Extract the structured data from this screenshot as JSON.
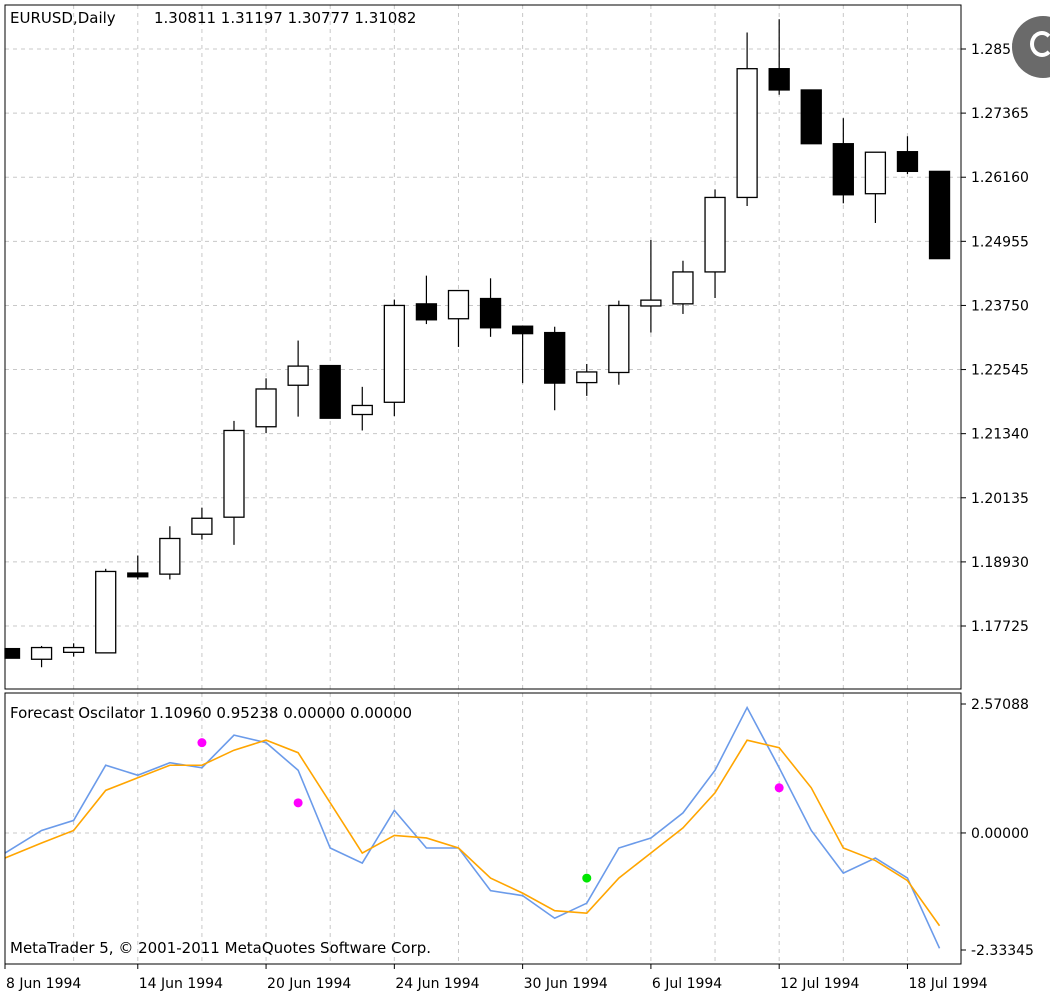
{
  "main_header": {
    "symbol_label": "EURUSD,Daily",
    "ohlc_values": "1.30811 1.31197 1.30777 1.31082"
  },
  "sub_header": {
    "indicator_label": "Forecast Oscilator 1.10960 0.95238 0.00000 0.00000",
    "copyright": "MetaTrader 5, © 2001-2011 MetaQuotes Software Corp."
  },
  "colors": {
    "grid": "#c8c8c8",
    "bull_fill": "#ffffff",
    "bear_fill": "#000000",
    "oscillator_line": "#6b9bea",
    "signal_line": "#ffa500",
    "buy_dot": "#00e600",
    "sell_dot": "#ff00ff",
    "corner_widget": "#6a6a6a"
  },
  "chart_data": [
    {
      "type": "candlestick",
      "title": "EURUSD,Daily",
      "ylim": [
        1.1665,
        1.2977
      ],
      "yticks": [
        "1.28570",
        "1.27365",
        "1.26160",
        "1.24955",
        "1.23750",
        "1.22545",
        "1.21340",
        "1.20135",
        "1.18930",
        "1.17725"
      ],
      "grid": true,
      "candles": [
        {
          "o": 1.173,
          "h": 1.173,
          "l": 1.1712,
          "c": 1.1712
        },
        {
          "o": 1.171,
          "h": 1.1735,
          "l": 1.1695,
          "c": 1.1732
        },
        {
          "o": 1.1723,
          "h": 1.174,
          "l": 1.1715,
          "c": 1.1732
        },
        {
          "o": 1.1722,
          "h": 1.188,
          "l": 1.1722,
          "c": 1.1875
        },
        {
          "o": 1.1872,
          "h": 1.1905,
          "l": 1.186,
          "c": 1.1865
        },
        {
          "o": 1.187,
          "h": 1.196,
          "l": 1.186,
          "c": 1.1937
        },
        {
          "o": 1.1945,
          "h": 1.1995,
          "l": 1.1935,
          "c": 1.1975
        },
        {
          "o": 1.1977,
          "h": 1.2158,
          "l": 1.1925,
          "c": 1.214
        },
        {
          "o": 1.2147,
          "h": 1.2238,
          "l": 1.2135,
          "c": 1.2218
        },
        {
          "o": 1.2225,
          "h": 1.2309,
          "l": 1.2166,
          "c": 1.2261
        },
        {
          "o": 1.2262,
          "h": 1.2262,
          "l": 1.2163,
          "c": 1.2163
        },
        {
          "o": 1.217,
          "h": 1.2222,
          "l": 1.214,
          "c": 1.2187
        },
        {
          "o": 1.2193,
          "h": 1.2386,
          "l": 1.2167,
          "c": 1.2375
        },
        {
          "o": 1.2378,
          "h": 1.2431,
          "l": 1.234,
          "c": 1.2348
        },
        {
          "o": 1.235,
          "h": 1.2403,
          "l": 1.2297,
          "c": 1.2403
        },
        {
          "o": 1.2388,
          "h": 1.2426,
          "l": 1.2316,
          "c": 1.2333
        },
        {
          "o": 1.2336,
          "h": 1.2336,
          "l": 1.2229,
          "c": 1.2322
        },
        {
          "o": 1.2324,
          "h": 1.2335,
          "l": 1.2178,
          "c": 1.2229
        },
        {
          "o": 1.223,
          "h": 1.2265,
          "l": 1.2205,
          "c": 1.225
        },
        {
          "o": 1.2249,
          "h": 1.2384,
          "l": 1.2226,
          "c": 1.2375
        },
        {
          "o": 1.2374,
          "h": 1.2498,
          "l": 1.2324,
          "c": 1.2385
        },
        {
          "o": 1.2378,
          "h": 1.2459,
          "l": 1.2359,
          "c": 1.2438
        },
        {
          "o": 1.2438,
          "h": 1.2593,
          "l": 1.2389,
          "c": 1.2578
        },
        {
          "o": 1.2578,
          "h": 1.2888,
          "l": 1.2562,
          "c": 1.282
        },
        {
          "o": 1.282,
          "h": 1.2913,
          "l": 1.2771,
          "c": 1.278
        },
        {
          "o": 1.278,
          "h": 1.278,
          "l": 1.2679,
          "c": 1.2679
        },
        {
          "o": 1.2679,
          "h": 1.2727,
          "l": 1.2567,
          "c": 1.2583
        },
        {
          "o": 1.2585,
          "h": 1.2663,
          "l": 1.253,
          "c": 1.2663
        },
        {
          "o": 1.2664,
          "h": 1.2693,
          "l": 1.2622,
          "c": 1.2627
        },
        {
          "o": 1.2627,
          "h": 1.2627,
          "l": 1.2463,
          "c": 1.2463
        }
      ]
    },
    {
      "type": "line",
      "title": "Forecast Oscilator 1.10960 0.95238 0.00000 0.00000",
      "ylim": [
        -2.33345,
        2.57088
      ],
      "yticks": [
        "2.57088",
        "0.00000",
        "-2.33345"
      ],
      "grid": true,
      "series": [
        {
          "values": [
            -0.4,
            0.05,
            0.25,
            1.35,
            1.15,
            1.4,
            1.3,
            1.95,
            1.8,
            1.25,
            -0.3,
            -0.6,
            0.45,
            -0.3,
            -0.3,
            -1.15,
            -1.25,
            -1.7,
            -1.4,
            -0.3,
            -0.1,
            0.4,
            1.25,
            2.5,
            1.3,
            0.05,
            -0.8,
            -0.5,
            -0.9,
            -2.3
          ]
        },
        {
          "values": [
            -0.5,
            -0.2,
            0.05,
            0.85,
            1.1,
            1.35,
            1.35,
            1.65,
            1.85,
            1.6,
            0.6,
            -0.4,
            -0.05,
            -0.1,
            -0.3,
            -0.9,
            -1.2,
            -1.55,
            -1.6,
            -0.9,
            -0.4,
            0.1,
            0.8,
            1.85,
            1.7,
            0.9,
            -0.3,
            -0.55,
            -0.95,
            -1.85
          ]
        }
      ],
      "markers": [
        {
          "x_index": 6,
          "value": 1.8,
          "kind": "sell"
        },
        {
          "x_index": 9,
          "value": 0.6,
          "kind": "sell"
        },
        {
          "x_index": 18,
          "value": -0.9,
          "kind": "buy"
        },
        {
          "x_index": 24,
          "value": 0.9,
          "kind": "sell"
        }
      ],
      "x_labels": [
        {
          "x_index": 0,
          "label": "8 Jun 1994"
        },
        {
          "x_index": 4,
          "label": "14 Jun 1994"
        },
        {
          "x_index": 8,
          "label": "20 Jun 1994"
        },
        {
          "x_index": 12,
          "label": "24 Jun 1994"
        },
        {
          "x_index": 16,
          "label": "30 Jun 1994"
        },
        {
          "x_index": 20,
          "label": "6 Jul 1994"
        },
        {
          "x_index": 24,
          "label": "12 Jul 1994"
        },
        {
          "x_index": 28,
          "label": "18 Jul 1994"
        }
      ]
    }
  ]
}
